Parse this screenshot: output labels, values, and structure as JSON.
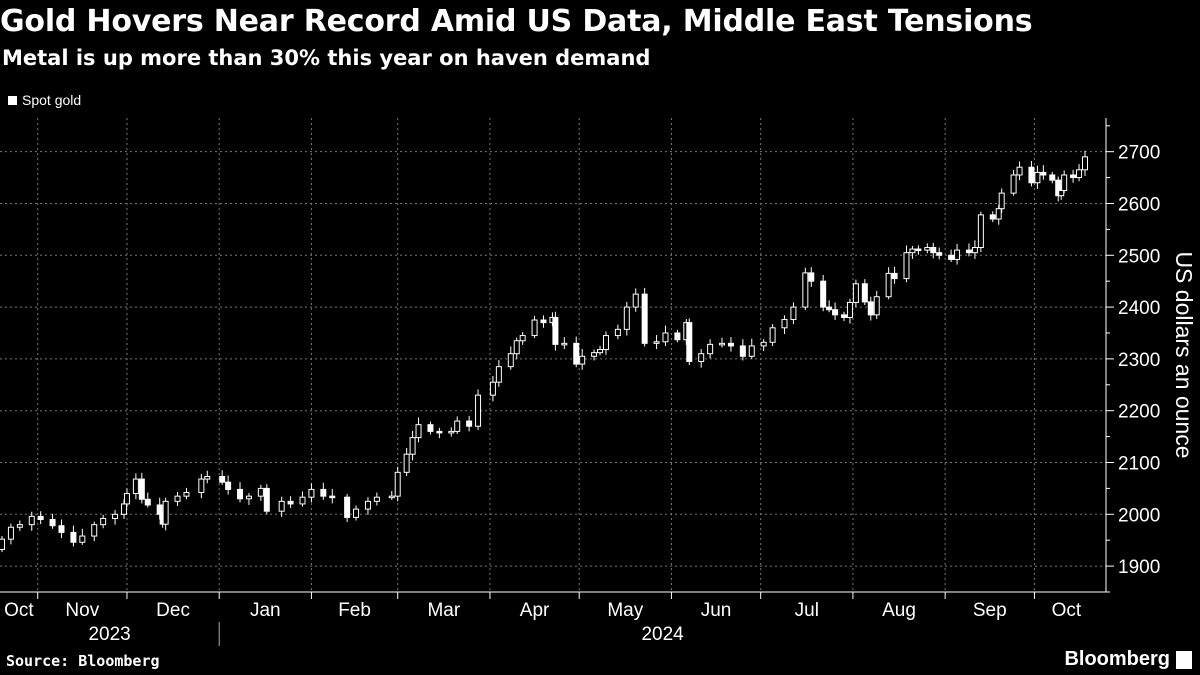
{
  "header": {
    "title": "Gold Hovers Near Record Amid US Data, Middle East Tensions",
    "subtitle": "Metal is up more than 30% this year on haven demand"
  },
  "footer": {
    "source": "Source: Bloomberg",
    "brand": "Bloomberg"
  },
  "colors": {
    "background": "#000000",
    "candles": "#ffffff",
    "grid": "#7a7a7a"
  },
  "chart_data": {
    "type": "candlestick",
    "title": "Gold Hovers Near Record Amid US Data, Middle East Tensions",
    "subtitle": "Metal is up more than 30% this year on haven demand",
    "ylabel": "US dollars an ounce",
    "y_axis_side": "right",
    "ylim": [
      1850,
      2765
    ],
    "yticks": [
      1900,
      2000,
      2100,
      2200,
      2300,
      2400,
      2500,
      2600,
      2700
    ],
    "xticks": [
      "Oct",
      "Nov",
      "Dec",
      "Jan",
      "Feb",
      "Mar",
      "Apr",
      "May",
      "Jun",
      "Jul",
      "Aug",
      "Sep",
      "Oct"
    ],
    "year_labels": [
      "2023",
      "2024"
    ],
    "grid": true,
    "legend": {
      "position": "top-left",
      "entries": [
        "Spot gold"
      ]
    },
    "series": [
      {
        "name": "Spot gold",
        "dates": [
          "2023-10-20",
          "2023-10-23",
          "2023-10-26",
          "2023-10-30",
          "2023-11-02",
          "2023-11-06",
          "2023-11-09",
          "2023-11-13",
          "2023-11-16",
          "2023-11-20",
          "2023-11-23",
          "2023-11-27",
          "2023-11-30",
          "2023-12-01",
          "2023-12-04",
          "2023-12-06",
          "2023-12-08",
          "2023-12-12",
          "2023-12-13",
          "2023-12-14",
          "2023-12-18",
          "2023-12-21",
          "2023-12-26",
          "2023-12-28",
          "2024-01-02",
          "2024-01-04",
          "2024-01-08",
          "2024-01-11",
          "2024-01-15",
          "2024-01-17",
          "2024-01-22",
          "2024-01-25",
          "2024-01-29",
          "2024-02-01",
          "2024-02-05",
          "2024-02-08",
          "2024-02-13",
          "2024-02-16",
          "2024-02-20",
          "2024-02-23",
          "2024-02-28",
          "2024-03-01",
          "2024-03-04",
          "2024-03-06",
          "2024-03-08",
          "2024-03-12",
          "2024-03-15",
          "2024-03-19",
          "2024-03-21",
          "2024-03-25",
          "2024-03-28",
          "2024-04-02",
          "2024-04-04",
          "2024-04-08",
          "2024-04-10",
          "2024-04-12",
          "2024-04-16",
          "2024-04-19",
          "2024-04-22",
          "2024-04-23",
          "2024-04-26",
          "2024-04-30",
          "2024-05-02",
          "2024-05-06",
          "2024-05-08",
          "2024-05-10",
          "2024-05-14",
          "2024-05-17",
          "2024-05-20",
          "2024-05-23",
          "2024-05-27",
          "2024-05-30",
          "2024-06-03",
          "2024-06-06",
          "2024-06-07",
          "2024-06-11",
          "2024-06-14",
          "2024-06-18",
          "2024-06-21",
          "2024-06-25",
          "2024-06-28",
          "2024-07-02",
          "2024-07-05",
          "2024-07-09",
          "2024-07-12",
          "2024-07-16",
          "2024-07-18",
          "2024-07-22",
          "2024-07-24",
          "2024-07-26",
          "2024-07-29",
          "2024-07-31",
          "2024-08-02",
          "2024-08-05",
          "2024-08-07",
          "2024-08-09",
          "2024-08-13",
          "2024-08-15",
          "2024-08-19",
          "2024-08-21",
          "2024-08-23",
          "2024-08-26",
          "2024-08-28",
          "2024-08-30",
          "2024-09-03",
          "2024-09-05",
          "2024-09-09",
          "2024-09-11",
          "2024-09-13",
          "2024-09-17",
          "2024-09-19",
          "2024-09-20",
          "2024-09-24",
          "2024-09-26",
          "2024-09-30",
          "2024-10-02",
          "2024-10-04",
          "2024-10-07",
          "2024-10-09",
          "2024-10-10",
          "2024-10-11",
          "2024-10-14",
          "2024-10-16",
          "2024-10-18"
        ],
        "close": [
          1952,
          1975,
          1980,
          1996,
          1990,
          1978,
          1965,
          1946,
          1958,
          1980,
          1992,
          2000,
          2020,
          2040,
          2068,
          2029,
          2018,
          2000,
          1981,
          2025,
          2035,
          2042,
          2068,
          2073,
          2062,
          2048,
          2030,
          2035,
          2050,
          2006,
          2025,
          2020,
          2033,
          2048,
          2035,
          2033,
          1994,
          2010,
          2025,
          2033,
          2035,
          2081,
          2116,
          2148,
          2173,
          2160,
          2158,
          2160,
          2180,
          2170,
          2230,
          2255,
          2285,
          2310,
          2335,
          2345,
          2375,
          2370,
          2380,
          2328,
          2330,
          2290,
          2305,
          2312,
          2318,
          2345,
          2357,
          2400,
          2425,
          2330,
          2333,
          2350,
          2337,
          2370,
          2295,
          2310,
          2328,
          2330,
          2325,
          2305,
          2325,
          2332,
          2360,
          2376,
          2400,
          2466,
          2450,
          2400,
          2395,
          2385,
          2380,
          2409,
          2445,
          2410,
          2385,
          2420,
          2465,
          2455,
          2505,
          2512,
          2510,
          2515,
          2505,
          2500,
          2492,
          2510,
          2505,
          2515,
          2578,
          2570,
          2590,
          2620,
          2655,
          2670,
          2640,
          2660,
          2655,
          2645,
          2615,
          2625,
          2655,
          2650,
          2665,
          2690
        ]
      }
    ]
  }
}
